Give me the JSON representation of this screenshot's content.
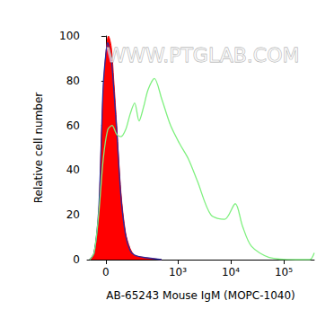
{
  "chart_data": {
    "type": "line",
    "watermark": "WWW.PTGLAB.COM",
    "xlabel": "AB-65243 Mouse IgM (MOPC-1040)",
    "ylabel": "Relative cell number",
    "xlim": [
      -80,
      378000
    ],
    "xticks": [
      {
        "value": 0,
        "label": "0"
      },
      {
        "value": 1000,
        "label": "10³"
      },
      {
        "value": 10000,
        "label": "10⁴"
      },
      {
        "value": 100000,
        "label": "10⁵"
      }
    ],
    "ylim": [
      0,
      100
    ],
    "yticks": [
      0,
      20,
      40,
      60,
      80,
      100
    ],
    "grid": false,
    "series": [
      {
        "type": "area",
        "color": "#ff0000",
        "x": [
          -67,
          -47,
          -28,
          -17,
          -10,
          0,
          10,
          21,
          31,
          43,
          62,
          85,
          111,
          141,
          217,
          493
        ],
        "values": [
          0,
          3,
          20,
          55,
          75,
          92,
          100,
          95,
          80,
          60,
          30,
          12,
          5,
          2,
          1,
          0
        ]
      },
      {
        "type": "line",
        "color": "#2a2a9c",
        "x": [
          -67,
          -47,
          -28,
          -17,
          -10,
          0,
          7,
          10,
          21,
          31,
          43,
          62,
          85,
          111,
          141,
          217,
          493
        ],
        "values": [
          0,
          3,
          22,
          55,
          78,
          92,
          97,
          96,
          90,
          76,
          58,
          28,
          11,
          4,
          2,
          1,
          0
        ]
      },
      {
        "type": "line",
        "color": "#7ff07f",
        "x": [
          -67,
          -47,
          -28,
          -10,
          7,
          24,
          43,
          62,
          85,
          111,
          141,
          176,
          217,
          269,
          358,
          493,
          730,
          1075,
          1590,
          2360,
          4230,
          7650,
          12200,
          16700,
          24650,
          53300,
          173000,
          312000,
          378000
        ],
        "values": [
          0,
          3,
          20,
          45,
          58,
          60,
          56,
          55,
          58,
          65,
          70,
          62,
          68,
          76,
          81,
          72,
          60,
          52,
          45,
          35,
          20,
          18,
          25,
          15,
          6,
          1,
          0,
          0,
          3
        ]
      }
    ]
  }
}
